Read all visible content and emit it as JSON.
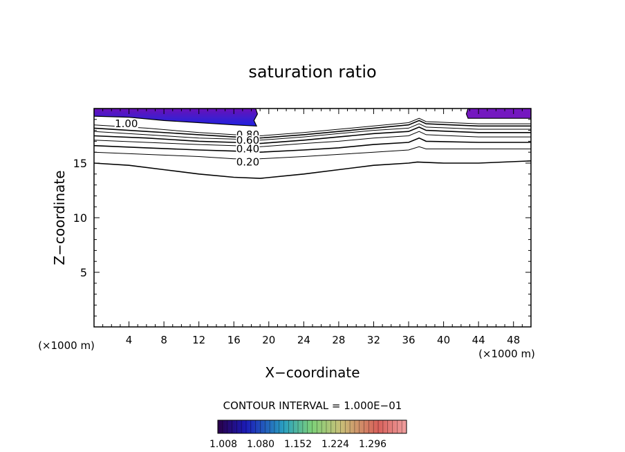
{
  "chart_data": {
    "type": "contour",
    "title": "saturation ratio",
    "xlabel": "X−coordinate",
    "ylabel": "Z−coordinate",
    "x_unit_left": "(×1000 m)",
    "x_unit_right": "(×1000 m)",
    "xlim": [
      0,
      50
    ],
    "ylim": [
      0,
      20
    ],
    "x_ticks": [
      4,
      8,
      12,
      16,
      20,
      24,
      28,
      32,
      36,
      40,
      44,
      48
    ],
    "y_ticks": [
      5,
      10,
      15
    ],
    "contour_interval_text": "CONTOUR INTERVAL = 1.000E−01",
    "contour_labels": [
      {
        "text": "1.00",
        "x": 3.7,
        "z": 18.6
      },
      {
        "text": "0.80",
        "x": 17.6,
        "z": 17.6
      },
      {
        "text": "0.60",
        "x": 17.6,
        "z": 17.1
      },
      {
        "text": "0.40",
        "x": 17.6,
        "z": 16.3
      },
      {
        "text": "0.20",
        "x": 17.6,
        "z": 15.1
      }
    ],
    "contours": [
      {
        "level": 0.2,
        "points": [
          [
            0,
            15.0
          ],
          [
            4,
            14.8
          ],
          [
            8,
            14.4
          ],
          [
            12,
            14.0
          ],
          [
            16,
            13.7
          ],
          [
            19,
            13.6
          ],
          [
            24,
            14.0
          ],
          [
            28,
            14.4
          ],
          [
            32,
            14.8
          ],
          [
            36,
            15.0
          ],
          [
            37,
            15.1
          ],
          [
            40,
            15.0
          ],
          [
            44,
            15.0
          ],
          [
            50,
            15.2
          ]
        ]
      },
      {
        "level": 0.3,
        "points": [
          [
            0,
            16.0
          ],
          [
            6,
            15.8
          ],
          [
            12,
            15.6
          ],
          [
            16,
            15.4
          ],
          [
            19,
            15.4
          ],
          [
            24,
            15.6
          ],
          [
            28,
            15.8
          ],
          [
            32,
            16.0
          ],
          [
            36,
            16.2
          ],
          [
            37.2,
            16.5
          ],
          [
            38,
            16.3
          ],
          [
            44,
            16.3
          ],
          [
            50,
            16.3
          ]
        ]
      },
      {
        "level": 0.4,
        "points": [
          [
            0,
            16.6
          ],
          [
            6,
            16.4
          ],
          [
            12,
            16.2
          ],
          [
            16,
            16.1
          ],
          [
            19,
            16.0
          ],
          [
            24,
            16.2
          ],
          [
            28,
            16.4
          ],
          [
            32,
            16.7
          ],
          [
            36,
            16.9
          ],
          [
            37.2,
            17.3
          ],
          [
            38,
            17.0
          ],
          [
            44,
            16.9
          ],
          [
            50,
            16.9
          ]
        ]
      },
      {
        "level": 0.5,
        "points": [
          [
            0,
            17.1
          ],
          [
            6,
            16.9
          ],
          [
            12,
            16.7
          ],
          [
            16,
            16.6
          ],
          [
            19,
            16.5
          ],
          [
            24,
            16.8
          ],
          [
            28,
            17.0
          ],
          [
            32,
            17.3
          ],
          [
            36,
            17.5
          ],
          [
            37.2,
            17.9
          ],
          [
            38,
            17.6
          ],
          [
            44,
            17.4
          ],
          [
            50,
            17.4
          ]
        ]
      },
      {
        "level": 0.6,
        "points": [
          [
            0,
            17.5
          ],
          [
            6,
            17.3
          ],
          [
            12,
            17.0
          ],
          [
            16,
            16.9
          ],
          [
            19,
            16.8
          ],
          [
            24,
            17.1
          ],
          [
            28,
            17.4
          ],
          [
            32,
            17.7
          ],
          [
            36,
            17.9
          ],
          [
            37.2,
            18.3
          ],
          [
            38,
            18.0
          ],
          [
            44,
            17.8
          ],
          [
            50,
            17.8
          ]
        ]
      },
      {
        "level": 0.7,
        "points": [
          [
            0,
            17.9
          ],
          [
            6,
            17.6
          ],
          [
            12,
            17.3
          ],
          [
            16,
            17.2
          ],
          [
            19,
            17.1
          ],
          [
            24,
            17.4
          ],
          [
            28,
            17.7
          ],
          [
            32,
            18.0
          ],
          [
            36,
            18.2
          ],
          [
            37.2,
            18.6
          ],
          [
            38,
            18.3
          ],
          [
            44,
            18.1
          ],
          [
            50,
            18.1
          ]
        ]
      },
      {
        "level": 0.8,
        "points": [
          [
            0,
            18.2
          ],
          [
            6,
            17.9
          ],
          [
            12,
            17.6
          ],
          [
            16,
            17.4
          ],
          [
            19,
            17.3
          ],
          [
            24,
            17.6
          ],
          [
            28,
            17.9
          ],
          [
            32,
            18.2
          ],
          [
            36,
            18.5
          ],
          [
            37.2,
            18.9
          ],
          [
            38,
            18.6
          ],
          [
            44,
            18.4
          ],
          [
            50,
            18.4
          ]
        ]
      },
      {
        "level": 0.9,
        "points": [
          [
            0,
            18.5
          ],
          [
            6,
            18.2
          ],
          [
            12,
            17.8
          ],
          [
            16,
            17.6
          ],
          [
            19,
            17.5
          ],
          [
            24,
            17.8
          ],
          [
            28,
            18.1
          ],
          [
            32,
            18.4
          ],
          [
            36,
            18.7
          ],
          [
            37.2,
            19.1
          ],
          [
            38,
            18.8
          ],
          [
            44,
            18.6
          ],
          [
            50,
            18.6
          ]
        ]
      }
    ],
    "filled_regions": [
      {
        "name": "left",
        "points": [
          [
            0,
            20
          ],
          [
            18.5,
            20
          ],
          [
            18.7,
            19.5
          ],
          [
            18.3,
            18.9
          ],
          [
            18.6,
            18.4
          ],
          [
            16,
            18.5
          ],
          [
            12,
            18.7
          ],
          [
            8,
            18.9
          ],
          [
            4,
            19.2
          ],
          [
            0,
            19.3
          ]
        ]
      },
      {
        "name": "right",
        "points": [
          [
            42.8,
            20
          ],
          [
            50,
            20
          ],
          [
            50,
            19.1
          ],
          [
            45,
            19.1
          ],
          [
            42.8,
            19.1
          ],
          [
            42.6,
            19.5
          ]
        ]
      }
    ],
    "colorbar": {
      "tick_labels": [
        "1.008",
        "1.080",
        "1.152",
        "1.224",
        "1.296"
      ],
      "colors": [
        "#2a0048",
        "#1b1bb8",
        "#2aa0c0",
        "#7ed078",
        "#c8c078",
        "#d8605a",
        "#f0a0a0"
      ]
    }
  }
}
